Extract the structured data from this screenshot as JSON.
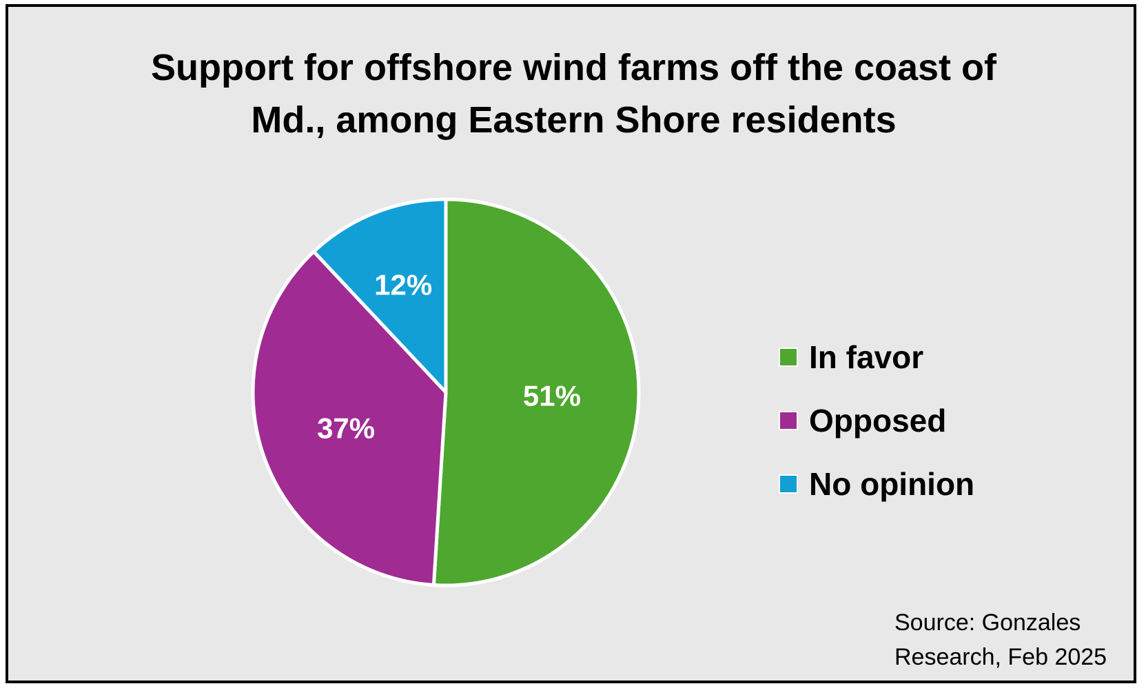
{
  "chart_data": {
    "type": "pie",
    "title_lines": [
      "Support for offshore wind farms off the coast of",
      "Md., among Eastern Shore residents"
    ],
    "slices": [
      {
        "label": "In favor",
        "value": 51,
        "value_label": "51%",
        "color": "#4ea72e"
      },
      {
        "label": "Opposed",
        "value": 37,
        "value_label": "37%",
        "color": "#a02b93"
      },
      {
        "label": "No opinion",
        "value": 12,
        "value_label": "12%",
        "color": "#119fd6"
      }
    ],
    "legend_position": "right",
    "source_lines": [
      "Source: Gonzales",
      "Research, Feb 2025"
    ]
  }
}
